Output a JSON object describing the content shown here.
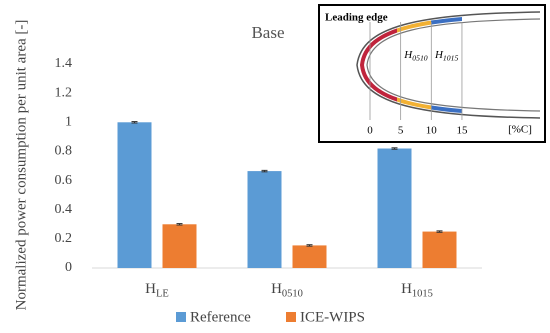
{
  "chart_data": {
    "type": "bar",
    "title": "Base",
    "y_label": "Normalized power consumption per unit area [-]",
    "categories": [
      {
        "base": "H",
        "sub": "LE"
      },
      {
        "base": "H",
        "sub": "0510"
      },
      {
        "base": "H",
        "sub": "1015"
      }
    ],
    "series": [
      {
        "name": "Reference",
        "color": "#5b9bd5",
        "values": [
          1.0,
          0.665,
          0.82
        ],
        "errors": [
          0.005,
          0.005,
          0.005
        ]
      },
      {
        "name": "ICE-WIPS",
        "color": "#ed7d31",
        "values": [
          0.3,
          0.155,
          0.25
        ],
        "errors": [
          0.005,
          0.005,
          0.005
        ]
      }
    ],
    "ylim": [
      0,
      1.4
    ],
    "yticks": [
      0,
      0.2,
      0.4,
      0.6,
      0.8,
      1,
      1.2,
      1.4
    ],
    "grid": false,
    "legend": "bottom",
    "inset": {
      "label": "Leading edge",
      "regions": [
        {
          "base": "H",
          "sub": "0510"
        },
        {
          "base": "H",
          "sub": "1015"
        }
      ],
      "ticks": [
        0,
        5,
        10,
        15
      ],
      "unit": "[%C]"
    }
  }
}
